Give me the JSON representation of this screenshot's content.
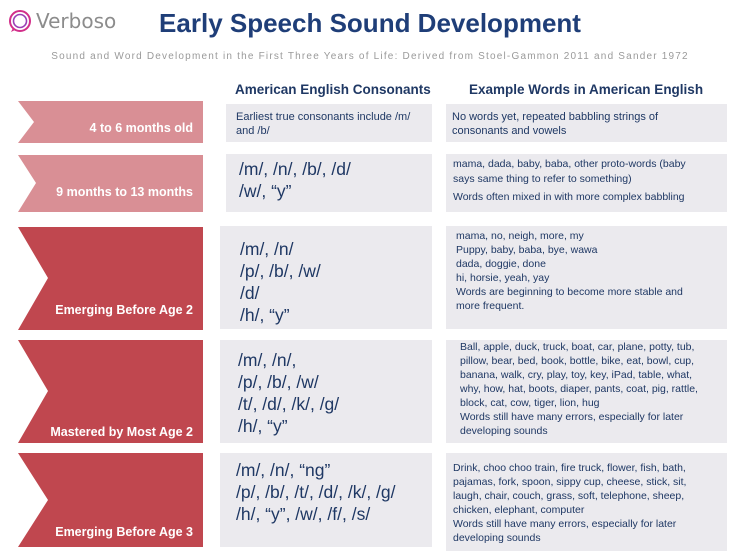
{
  "brand": {
    "name": "Verboso"
  },
  "title": "Early Speech Sound Development",
  "subtitle": "Sound and Word Development in the First Three Years of Life: Derived from Stoel-Gammon 2011 and Sander 1972",
  "headers": {
    "consonants": "American English Consonants",
    "examples": "Example Words in American English"
  },
  "colors": {
    "arrow_light": "#d98f95",
    "arrow_dark": "#c0474f",
    "box_bg": "#ebeaee",
    "text": "#1f3864"
  },
  "rows": [
    {
      "age": "4 to 6 months old",
      "consonant_lines": [
        "Earliest true consonants include /m/",
        "and /b/"
      ],
      "example_lines": [
        "No words yet, repeated babbling strings of",
        "consonants and vowels"
      ]
    },
    {
      "age": "9 months to 13 months",
      "consonant_lines": [
        "/m/, /n/, /b/, /d/",
        "/w/, “y”"
      ],
      "example_lines": [
        "mama, dada, baby, baba, other proto-words  (baby",
        "says same thing to refer to something)",
        "Words often mixed in with more  complex babbling"
      ]
    },
    {
      "age": "Emerging Before Age 2",
      "consonant_lines": [
        "/m/, /n/",
        "/p/, /b/, /w/",
        "/d/",
        "/h/, “y”"
      ],
      "example_lines": [
        "mama, no, neigh, more,  my",
        "Puppy, baby, baba, bye, wawa",
        "dada, doggie, done",
        "hi, horsie, yeah, yay",
        "Words are beginning to become more stable and",
        "more frequent."
      ]
    },
    {
      "age": "Mastered by Most Age 2",
      "consonant_lines": [
        "/m/, /n/,",
        "/p/, /b/, /w/",
        "/t/, /d/, /k/, /g/",
        "/h/, “y”"
      ],
      "example_lines": [
        "Ball, apple, duck, truck, boat, car, plane, potty, tub,",
        "pillow, bear, bed, book, bottle, bike, eat, bowl, cup,",
        "banana, walk, cry, play, toy, key, iPad, table, what,",
        "why, how, hat, boots, diaper, pants, coat, pig, rattle,",
        "block, cat, cow, tiger, lion,  hug",
        "Words still have many errors, especially for later",
        "developing sounds"
      ]
    },
    {
      "age": "Emerging Before Age 3",
      "consonant_lines": [
        "/m/, /n/, “ng”",
        "/p/, /b/, /t/, /d/, /k/, /g/",
        "/h/, “y”, /w/, /f/, /s/"
      ],
      "example_lines": [
        "Drink, choo choo train, fire truck, flower, fish, bath,",
        "pajamas, fork, spoon, sippy cup, cheese, stick, sit,",
        "laugh, chair, couch, grass, soft, telephone,  sheep,",
        "chicken, elephant, computer",
        "Words still have many errors, especially for later",
        "developing sounds"
      ]
    }
  ]
}
